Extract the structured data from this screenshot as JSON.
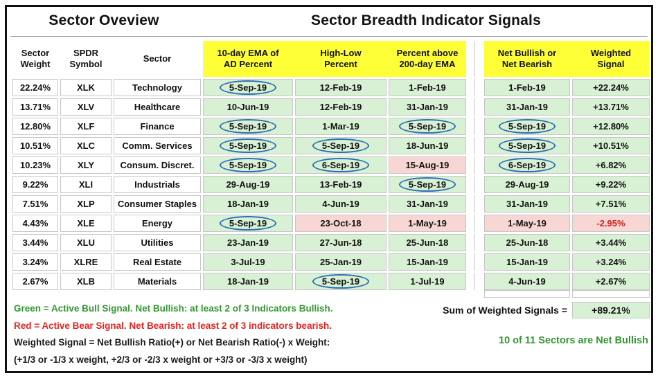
{
  "titles": {
    "left": "Sector Oveview",
    "right": "Sector Breadth Indicator Signals"
  },
  "header": {
    "sector_weight": {
      "line1": "Sector",
      "line2": "Weight"
    },
    "spdr_symbol": {
      "line1": "SPDR",
      "line2": "Symbol"
    },
    "sector": {
      "line1": "Sector",
      "line2": ""
    },
    "ad_percent": {
      "line1": "10-day EMA of",
      "line2": "AD Percent"
    },
    "high_low": {
      "line1": "High-Low",
      "line2": "Percent"
    },
    "above_ema": {
      "line1": "Percent above",
      "line2": "200-day EMA"
    },
    "net_bullish": {
      "line1": "Net Bullish or",
      "line2": "Net Bearish"
    },
    "weighted": {
      "line1": "Weighted",
      "line2": "Signal"
    }
  },
  "rows": [
    {
      "weight": "22.24%",
      "symbol": "XLK",
      "sector": "Technology",
      "signals": [
        {
          "date": "5-Sep-19",
          "circled": true,
          "bear": false
        },
        {
          "date": "12-Feb-19",
          "circled": false,
          "bear": false
        },
        {
          "date": "1-Feb-19",
          "circled": false,
          "bear": false
        }
      ],
      "net": {
        "date": "1-Feb-19",
        "circled": false,
        "bear": false
      },
      "weighted": {
        "value": "+22.24%",
        "bear": false
      }
    },
    {
      "weight": "13.71%",
      "symbol": "XLV",
      "sector": "Healthcare",
      "signals": [
        {
          "date": "10-Jun-19",
          "circled": false,
          "bear": false
        },
        {
          "date": "12-Feb-19",
          "circled": false,
          "bear": false
        },
        {
          "date": "31-Jan-19",
          "circled": false,
          "bear": false
        }
      ],
      "net": {
        "date": "31-Jan-19",
        "circled": false,
        "bear": false
      },
      "weighted": {
        "value": "+13.71%",
        "bear": false
      }
    },
    {
      "weight": "12.80%",
      "symbol": "XLF",
      "sector": "Finance",
      "signals": [
        {
          "date": "5-Sep-19",
          "circled": true,
          "bear": false
        },
        {
          "date": "1-Mar-19",
          "circled": false,
          "bear": false
        },
        {
          "date": "5-Sep-19",
          "circled": true,
          "bear": false
        }
      ],
      "net": {
        "date": "5-Sep-19",
        "circled": true,
        "bear": false
      },
      "weighted": {
        "value": "+12.80%",
        "bear": false
      }
    },
    {
      "weight": "10.51%",
      "symbol": "XLC",
      "sector": "Comm. Services",
      "signals": [
        {
          "date": "5-Sep-19",
          "circled": true,
          "bear": false
        },
        {
          "date": "5-Sep-19",
          "circled": true,
          "bear": false
        },
        {
          "date": "18-Jun-19",
          "circled": false,
          "bear": false
        }
      ],
      "net": {
        "date": "5-Sep-19",
        "circled": true,
        "bear": false
      },
      "weighted": {
        "value": "+10.51%",
        "bear": false
      }
    },
    {
      "weight": "10.23%",
      "symbol": "XLY",
      "sector": "Consum. Discret.",
      "signals": [
        {
          "date": "5-Sep-19",
          "circled": true,
          "bear": false
        },
        {
          "date": "6-Sep-19",
          "circled": true,
          "bear": false
        },
        {
          "date": "15-Aug-19",
          "circled": false,
          "bear": true
        }
      ],
      "net": {
        "date": "6-Sep-19",
        "circled": true,
        "bear": false
      },
      "weighted": {
        "value": "+6.82%",
        "bear": false
      }
    },
    {
      "weight": "9.22%",
      "symbol": "XLI",
      "sector": "Industrials",
      "signals": [
        {
          "date": "29-Aug-19",
          "circled": false,
          "bear": false
        },
        {
          "date": "13-Feb-19",
          "circled": false,
          "bear": false
        },
        {
          "date": "5-Sep-19",
          "circled": true,
          "bear": false
        }
      ],
      "net": {
        "date": "29-Aug-19",
        "circled": false,
        "bear": false
      },
      "weighted": {
        "value": "+9.22%",
        "bear": false
      }
    },
    {
      "weight": "7.51%",
      "symbol": "XLP",
      "sector": "Consumer Staples",
      "signals": [
        {
          "date": "18-Jan-19",
          "circled": false,
          "bear": false
        },
        {
          "date": "4-Jun-19",
          "circled": false,
          "bear": false
        },
        {
          "date": "31-Jan-19",
          "circled": false,
          "bear": false
        }
      ],
      "net": {
        "date": "31-Jan-19",
        "circled": false,
        "bear": false
      },
      "weighted": {
        "value": "+7.51%",
        "bear": false
      }
    },
    {
      "weight": "4.43%",
      "symbol": "XLE",
      "sector": "Energy",
      "signals": [
        {
          "date": "5-Sep-19",
          "circled": true,
          "bear": false
        },
        {
          "date": "23-Oct-18",
          "circled": false,
          "bear": true
        },
        {
          "date": "1-May-19",
          "circled": false,
          "bear": true
        }
      ],
      "net": {
        "date": "1-May-19",
        "circled": false,
        "bear": true
      },
      "weighted": {
        "value": "-2.95%",
        "bear": true
      }
    },
    {
      "weight": "3.44%",
      "symbol": "XLU",
      "sector": "Utilities",
      "signals": [
        {
          "date": "23-Jan-19",
          "circled": false,
          "bear": false
        },
        {
          "date": "27-Jun-18",
          "circled": false,
          "bear": false
        },
        {
          "date": "25-Jun-18",
          "circled": false,
          "bear": false
        }
      ],
      "net": {
        "date": "25-Jun-18",
        "circled": false,
        "bear": false
      },
      "weighted": {
        "value": "+3.44%",
        "bear": false
      }
    },
    {
      "weight": "3.24%",
      "symbol": "XLRE",
      "sector": "Real Estate",
      "signals": [
        {
          "date": "3-Jul-19",
          "circled": false,
          "bear": false
        },
        {
          "date": "25-Jan-19",
          "circled": false,
          "bear": false
        },
        {
          "date": "15-Jan-19",
          "circled": false,
          "bear": false
        }
      ],
      "net": {
        "date": "15-Jan-19",
        "circled": false,
        "bear": false
      },
      "weighted": {
        "value": "+3.24%",
        "bear": false
      }
    },
    {
      "weight": "2.67%",
      "symbol": "XLB",
      "sector": "Materials",
      "signals": [
        {
          "date": "18-Jan-19",
          "circled": false,
          "bear": false
        },
        {
          "date": "5-Sep-19",
          "circled": true,
          "bear": false
        },
        {
          "date": "1-Jul-19",
          "circled": false,
          "bear": false
        }
      ],
      "net": {
        "date": "4-Jun-19",
        "circled": false,
        "bear": false
      },
      "weighted": {
        "value": "+2.67%",
        "bear": false
      }
    }
  ],
  "legend": {
    "green_line": "Green = Active Bull Signal. Net Bullish: at least 2 of 3 Indicators Bullish.",
    "red_line": "Red = Active Bear Signal. Net Bearish: at least 2 of 3 indicators bearish.",
    "formula_line1": "Weighted Signal = Net Bullish Ratio(+) or Net Bearish Ratio(-) x Weight:",
    "formula_line2": "(+1/3 or -1/3 x weight, +2/3 or -2/3 x weight or +3/3 or -3/3 x weight)"
  },
  "summary": {
    "sum_label": "Sum of Weighted Signals =",
    "sum_value": "+89.21%",
    "net_bullish_note": "10 of 11 Sectors are Net Bullish"
  },
  "colors": {
    "header_fill": "#ffff38",
    "bull_cell_fill": "#d8f1d4",
    "bear_cell_fill": "#f7d6d4",
    "bull_text": "#339933",
    "bear_text": "#e82222",
    "negative_signal_text": "#cc2222",
    "circle_stroke": "#2a6db5"
  }
}
